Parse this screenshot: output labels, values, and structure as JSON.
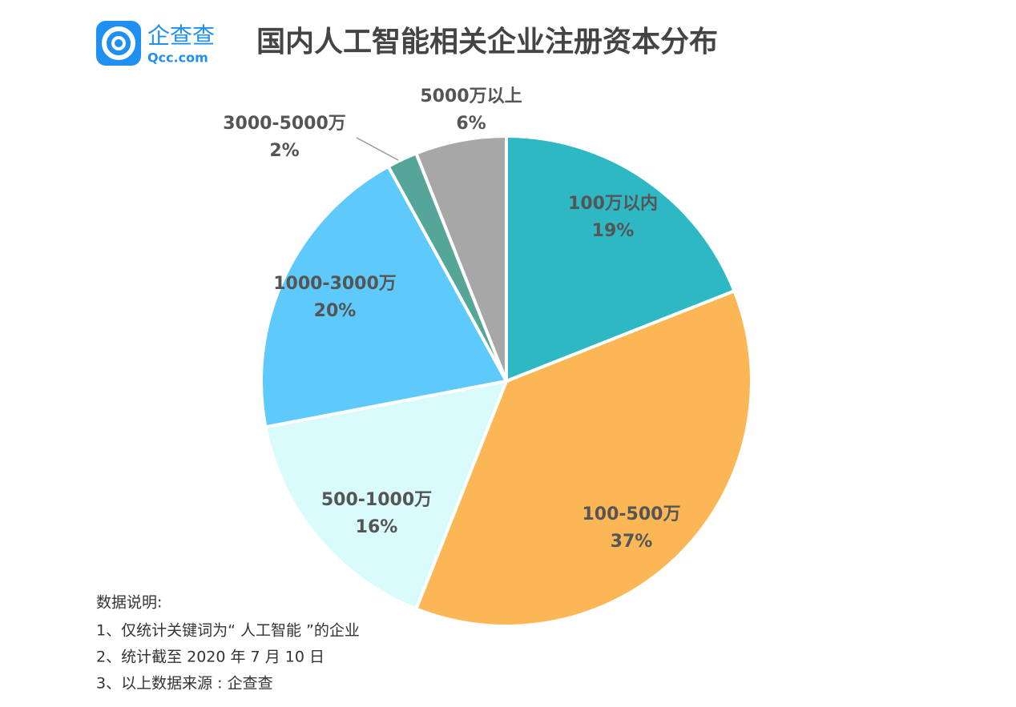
{
  "logo": {
    "name": "企查查",
    "site": "Qcc.com"
  },
  "chart_data": {
    "type": "pie",
    "title": "国内人工智能相关企业注册资本分布",
    "categories": [
      "100万以内",
      "100-500万",
      "500-1000万",
      "1000-3000万",
      "3000-5000万",
      "5000万以上"
    ],
    "values": [
      19,
      37,
      16,
      20,
      2,
      6
    ],
    "value_labels": [
      "19%",
      "37%",
      "16%",
      "20%",
      "2%",
      "6%"
    ],
    "colors": [
      "#2eb8c4",
      "#fbb756",
      "#d9fbfb",
      "#5ecafc",
      "#55a699",
      "#a7a7a7"
    ]
  },
  "notes": {
    "heading": "数据说明:",
    "lines": [
      "1、仅统计关键词为“ 人工智能 ”的企业",
      "2、统计截至 2020 年 7 月 10 日",
      "3、以上数据来源 : 企查查"
    ]
  }
}
